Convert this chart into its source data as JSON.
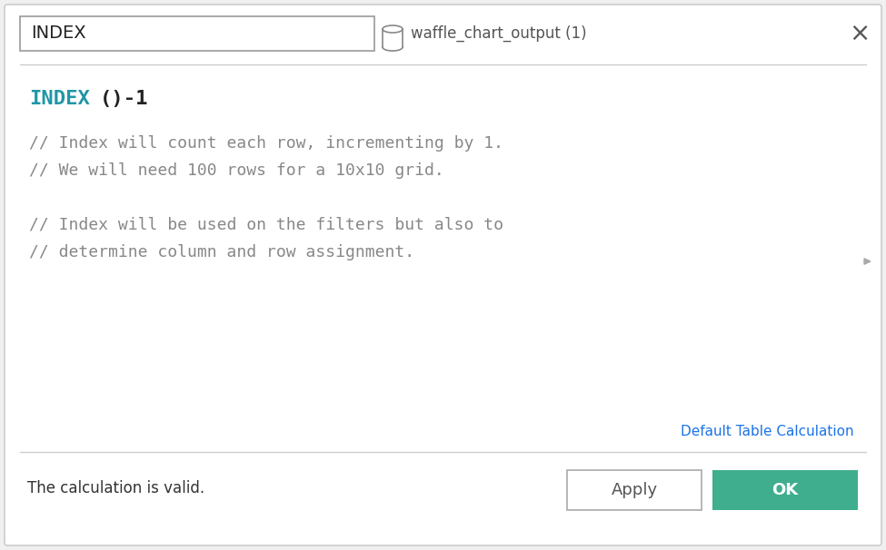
{
  "bg_color": "#f0f0f0",
  "dialog_bg": "#ffffff",
  "dialog_border": "#cccccc",
  "title_input_text": "INDEX",
  "title_input_border": "#999999",
  "datasource_icon_color": "#888888",
  "datasource_text": "waffle_chart_output (1)",
  "datasource_text_color": "#555555",
  "close_x_color": "#555555",
  "separator_color": "#cccccc",
  "formula_keyword": "INDEX",
  "formula_keyword_color": "#2196A6",
  "formula_rest": "()-1",
  "formula_rest_color": "#222222",
  "formula_font_size": 16,
  "comment_color": "#888888",
  "comment_lines": [
    "// Index will count each row, incrementing by 1.",
    "// We will need 100 rows for a 10x10 grid.",
    "",
    "// Index will be used on the filters but also to",
    "// determine column and row assignment."
  ],
  "comment_font_size": 13,
  "arrow_color": "#aaaaaa",
  "default_table_calc_text": "Default Table Calculation",
  "default_table_calc_color": "#1a73e8",
  "valid_text": "The calculation is valid.",
  "valid_text_color": "#333333",
  "apply_button_text": "Apply",
  "apply_border_color": "#aaaaaa",
  "apply_text_color": "#555555",
  "ok_button_text": "OK",
  "ok_bg_color": "#3EAE8E",
  "ok_text_color": "#ffffff"
}
